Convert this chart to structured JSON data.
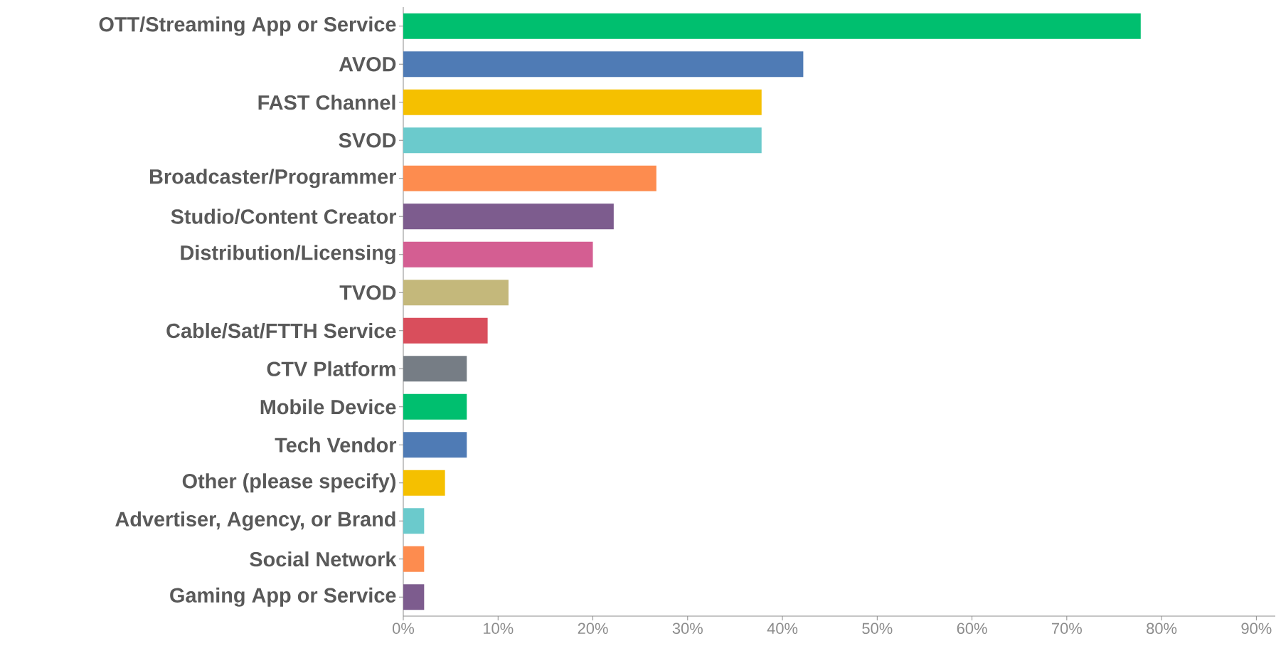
{
  "chart_data": {
    "type": "bar",
    "orientation": "horizontal",
    "categories": [
      "OTT/Streaming App or Service",
      "AVOD",
      "FAST Channel",
      "SVOD",
      "Broadcaster/Programmer",
      "Studio/Content Creator",
      "Distribution/Licensing",
      "TVOD",
      "Cable/Sat/FTTH Service",
      "CTV Platform",
      "Mobile Device",
      "Tech Vendor",
      "Other (please specify)",
      "Advertiser, Agency, or Brand",
      "Social Network",
      "Gaming App or Service"
    ],
    "values": [
      77.8,
      42.2,
      37.8,
      37.8,
      26.7,
      22.2,
      20.0,
      11.1,
      8.9,
      6.7,
      6.7,
      6.7,
      4.4,
      2.2,
      2.2,
      2.2
    ],
    "colors": [
      "#00bf6f",
      "#4f7bb5",
      "#f5c000",
      "#6bcacc",
      "#fd8c4f",
      "#7d5c8e",
      "#d45e92",
      "#c4b87b",
      "#d94e5c",
      "#767d85",
      "#00bf6f",
      "#4f7bb5",
      "#f5c000",
      "#6bcacc",
      "#fd8c4f",
      "#7d5c8e"
    ],
    "xlim": [
      0,
      92
    ],
    "xticks": [
      {
        "value": 0,
        "label": "0%"
      },
      {
        "value": 10,
        "label": "10%"
      },
      {
        "value": 20,
        "label": "20%"
      },
      {
        "value": 30,
        "label": "30%"
      },
      {
        "value": 40,
        "label": "40%"
      },
      {
        "value": 50,
        "label": "50%"
      },
      {
        "value": 60,
        "label": "60%"
      },
      {
        "value": 70,
        "label": "70%"
      },
      {
        "value": 80,
        "label": "80%"
      },
      {
        "value": 90,
        "label": "90%"
      }
    ],
    "grid": false,
    "legend": false
  }
}
